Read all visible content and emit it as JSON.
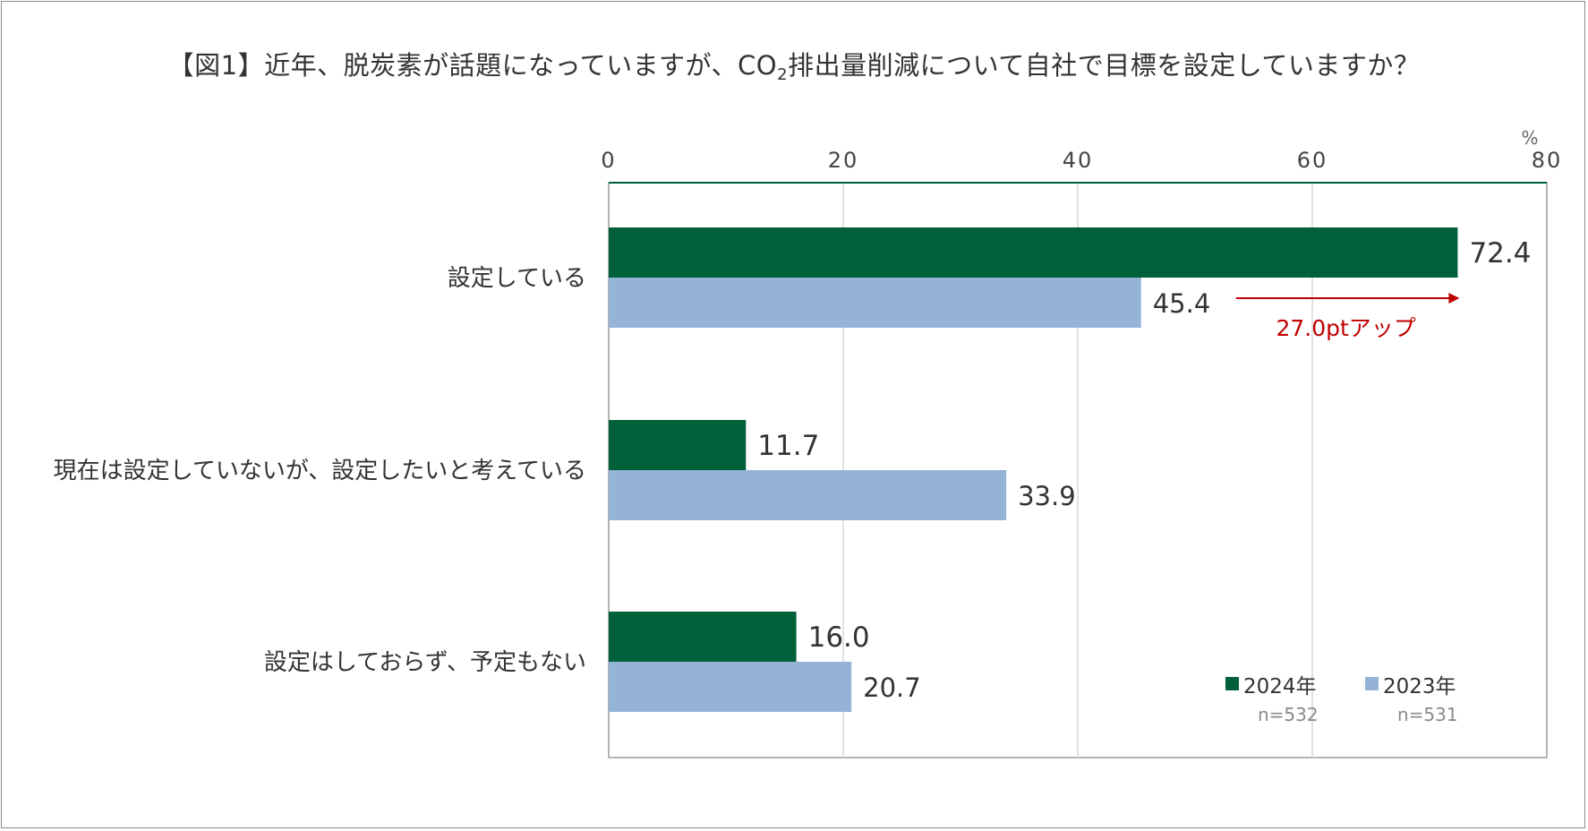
{
  "title_main": "【図1】近年、脱炭素が話題になっていますが、CO",
  "title_sub": "2",
  "title_rest": "排出量削減について自社で目標を設定していますか？",
  "chart_data": {
    "type": "bar",
    "orientation": "horizontal",
    "categories": [
      "設定している",
      "現在は設定していないが、設定したいと考えている",
      "設定はしておらず、予定もない"
    ],
    "series": [
      {
        "name": "2024年",
        "n_label": "n=532",
        "color": "#006039",
        "values": [
          72.4,
          11.7,
          16.0
        ]
      },
      {
        "name": "2023年",
        "n_label": "n=531",
        "color": "#95b3d7",
        "values": [
          45.4,
          33.9,
          20.7
        ]
      }
    ],
    "value_labels": [
      [
        "72.4",
        "11.7",
        "16.0"
      ],
      [
        "45.4",
        "33.9",
        "20.7"
      ]
    ],
    "xlim": [
      0,
      80
    ],
    "xticks": [
      0,
      20,
      40,
      60,
      80
    ],
    "xtick_labels": [
      "0",
      "20",
      "40",
      "60",
      "80"
    ],
    "unit": "%",
    "grid": true,
    "legend_position": "bottom-right",
    "annotation": {
      "text": "27.0ptアップ",
      "color": "#c00000",
      "from": 53.5,
      "to": 72.4
    }
  }
}
